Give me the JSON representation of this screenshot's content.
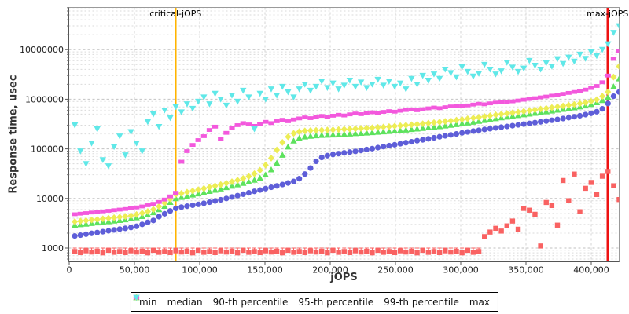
{
  "chart_data": {
    "type": "scatter",
    "title": "",
    "xlabel": "jOPS",
    "ylabel": "Response time, usec",
    "x_scale": "linear",
    "y_scale": "log",
    "xlim": [
      0,
      421500
    ],
    "ylim": [
      540,
      71000000
    ],
    "grid": "dashed",
    "legend_position": "bottom",
    "x_ticks": [
      0,
      50000,
      100000,
      150000,
      200000,
      250000,
      300000,
      350000,
      400000
    ],
    "x_tick_labels": [
      "0",
      "50,000",
      "100,000",
      "150,000",
      "200,000",
      "250,000",
      "300,000",
      "350,000",
      "400,000"
    ],
    "y_ticks": [
      1000,
      10000,
      100000,
      1000000,
      10000000
    ],
    "y_tick_labels": [
      "1000",
      "10000",
      "100000",
      "1000000",
      "10000000"
    ],
    "annotations": [
      {
        "label": "critical-jOPS",
        "x": 81500,
        "color": "#FFB400"
      },
      {
        "label": "max-jOPS",
        "x": 412500,
        "color": "#EE1111"
      }
    ],
    "x": [
      4300,
      8600,
      12900,
      17200,
      21500,
      25800,
      30100,
      34400,
      38700,
      43000,
      47300,
      51600,
      55900,
      60200,
      64500,
      68800,
      73100,
      77400,
      81700,
      86000,
      90300,
      94600,
      98900,
      103200,
      107500,
      111800,
      116100,
      120400,
      124700,
      129000,
      133300,
      137600,
      141900,
      146200,
      150500,
      154800,
      159100,
      163400,
      167700,
      172000,
      176300,
      180600,
      184900,
      189200,
      193500,
      197800,
      202100,
      206400,
      210700,
      215000,
      219300,
      223600,
      227900,
      232200,
      236500,
      240800,
      245100,
      249400,
      253700,
      258000,
      262300,
      266600,
      270900,
      275200,
      279500,
      283800,
      288100,
      292400,
      296700,
      301000,
      305300,
      309600,
      313900,
      318200,
      322500,
      326800,
      331100,
      335400,
      339700,
      344000,
      348300,
      352600,
      356900,
      361200,
      365500,
      369800,
      374100,
      378400,
      382700,
      387000,
      391300,
      395600,
      399900,
      404200,
      408500,
      412800,
      417100,
      421400
    ],
    "series": [
      {
        "name": "min",
        "marker": "square",
        "color": "#F96262",
        "values": [
          850,
          810,
          880,
          830,
          860,
          800,
          900,
          820,
          850,
          810,
          880,
          830,
          860,
          800,
          900,
          820,
          850,
          810,
          880,
          830,
          860,
          800,
          900,
          820,
          850,
          810,
          880,
          830,
          860,
          800,
          900,
          820,
          850,
          810,
          880,
          830,
          860,
          800,
          900,
          820,
          850,
          810,
          880,
          830,
          860,
          800,
          900,
          820,
          850,
          810,
          880,
          830,
          860,
          800,
          900,
          820,
          850,
          810,
          880,
          830,
          860,
          800,
          900,
          820,
          850,
          810,
          880,
          830,
          860,
          800,
          900,
          820,
          850,
          1700,
          2100,
          2500,
          2200,
          2800,
          3500,
          2400,
          6300,
          5800,
          4800,
          1100,
          8300,
          7200,
          2900,
          23000,
          9000,
          31000,
          5400,
          16000,
          21000,
          12000,
          28000,
          35000,
          18000,
          9500
        ]
      },
      {
        "name": "median",
        "marker": "circle",
        "color": "#5E5ED8",
        "values": [
          1750,
          1820,
          1900,
          1980,
          2060,
          2140,
          2230,
          2320,
          2410,
          2500,
          2600,
          2750,
          3000,
          3300,
          3600,
          4300,
          4900,
          5600,
          6300,
          6700,
          7000,
          7300,
          7600,
          8000,
          8400,
          8900,
          9400,
          10000,
          10700,
          11400,
          12200,
          13000,
          13900,
          14800,
          15800,
          16800,
          17900,
          19100,
          20500,
          22000,
          25000,
          31000,
          41000,
          56000,
          67000,
          73000,
          77000,
          80000,
          83000,
          86000,
          89000,
          93000,
          97000,
          101000,
          106000,
          111000,
          116000,
          121000,
          127000,
          133000,
          139000,
          146000,
          152000,
          159000,
          167000,
          175000,
          183000,
          191000,
          200000,
          210000,
          219000,
          228000,
          237000,
          246000,
          255000,
          264000,
          273000,
          283000,
          293000,
          304000,
          315000,
          326000,
          338000,
          350000,
          363000,
          377000,
          392000,
          408000,
          425000,
          444000,
          465000,
          490000,
          520000,
          560000,
          640000,
          820000,
          1150000,
          1400000
        ]
      },
      {
        "name": "90-th percentile",
        "marker": "triangle-up",
        "color": "#5DE25D",
        "values": [
          2900,
          2980,
          3060,
          3150,
          3240,
          3330,
          3430,
          3530,
          3640,
          3750,
          3900,
          4100,
          4350,
          4700,
          5200,
          6000,
          7000,
          8400,
          10000,
          10600,
          11200,
          11800,
          12500,
          13200,
          14000,
          14800,
          15700,
          16700,
          17800,
          19000,
          20300,
          21700,
          23500,
          26000,
          30000,
          38000,
          52000,
          75000,
          110000,
          145000,
          165000,
          175000,
          181000,
          185000,
          188000,
          190000,
          192000,
          195000,
          198000,
          201000,
          204000,
          207000,
          210000,
          214000,
          218000,
          222000,
          226000,
          231000,
          236000,
          241000,
          247000,
          253000,
          260000,
          267000,
          275000,
          283000,
          292000,
          301000,
          311000,
          322000,
          334000,
          347000,
          361000,
          376000,
          392000,
          409000,
          425000,
          440000,
          456000,
          472000,
          489000,
          506000,
          524000,
          543000,
          563000,
          584000,
          606000,
          629000,
          653000,
          678000,
          705000,
          740000,
          790000,
          860000,
          950000,
          1100000,
          1800000,
          2600000
        ]
      },
      {
        "name": "95-th percentile",
        "marker": "diamond",
        "color": "#EDED55",
        "values": [
          3400,
          3490,
          3580,
          3680,
          3780,
          3880,
          3990,
          4100,
          4220,
          4340,
          4500,
          4750,
          5050,
          5450,
          6000,
          6900,
          8100,
          9800,
          12000,
          12700,
          13400,
          14200,
          15000,
          15900,
          16900,
          17900,
          19000,
          20300,
          21700,
          23300,
          25200,
          27800,
          31500,
          37000,
          47000,
          65000,
          95000,
          135000,
          175000,
          205000,
          222000,
          230000,
          234000,
          236000,
          238000,
          240000,
          242000,
          245000,
          248000,
          251000,
          254000,
          258000,
          262000,
          266000,
          271000,
          276000,
          281000,
          287000,
          293000,
          299000,
          306000,
          313000,
          321000,
          329000,
          338000,
          347000,
          357000,
          368000,
          379000,
          391000,
          404000,
          418000,
          433000,
          449000,
          466000,
          484000,
          500000,
          516000,
          533000,
          551000,
          570000,
          590000,
          611000,
          633000,
          656000,
          680000,
          705000,
          731000,
          758000,
          787000,
          820000,
          860000,
          910000,
          980000,
          1150000,
          1400000,
          2800000,
          4600000
        ]
      },
      {
        "name": "99-th percentile",
        "marker": "hbar",
        "color": "#F358DD",
        "values": [
          4800,
          4930,
          5060,
          5200,
          5340,
          5490,
          5640,
          5800,
          5960,
          6130,
          6350,
          6600,
          6900,
          7300,
          7800,
          8500,
          9500,
          11000,
          13000,
          55000,
          90000,
          120000,
          150000,
          180000,
          240000,
          280000,
          160000,
          210000,
          260000,
          300000,
          330000,
          310000,
          290000,
          320000,
          350000,
          330000,
          360000,
          385000,
          360000,
          390000,
          410000,
          430000,
          415000,
          440000,
          460000,
          440000,
          465000,
          485000,
          470000,
          495000,
          515000,
          500000,
          525000,
          545000,
          530000,
          555000,
          575000,
          560000,
          585000,
          605000,
          625000,
          600000,
          630000,
          655000,
          680000,
          660000,
          690000,
          715000,
          740000,
          720000,
          750000,
          780000,
          810000,
          790000,
          825000,
          855000,
          890000,
          870000,
          905000,
          940000,
          975000,
          1010000,
          1050000,
          1090000,
          1130000,
          1180000,
          1230000,
          1280000,
          1340000,
          1400000,
          1470000,
          1560000,
          1680000,
          1850000,
          2200000,
          3000000,
          6500000,
          9500000
        ]
      },
      {
        "name": "max",
        "marker": "triangle-down",
        "color": "#60E8E8",
        "values": [
          300000,
          90000,
          50000,
          130000,
          250000,
          60000,
          45000,
          110000,
          180000,
          75000,
          220000,
          130000,
          90000,
          350000,
          500000,
          280000,
          600000,
          420000,
          700000,
          550000,
          800000,
          650000,
          900000,
          1100000,
          800000,
          1300000,
          1000000,
          750000,
          1200000,
          900000,
          1500000,
          1100000,
          250000,
          1300000,
          1000000,
          1600000,
          1200000,
          1800000,
          1400000,
          1100000,
          1600000,
          2000000,
          1500000,
          1800000,
          2300000,
          1700000,
          2100000,
          1600000,
          1900000,
          2400000,
          1800000,
          2200000,
          1700000,
          2000000,
          2500000,
          1900000,
          2300000,
          1800000,
          2100000,
          1600000,
          2600000,
          2000000,
          3000000,
          2400000,
          3200000,
          2600000,
          4000000,
          3400000,
          2800000,
          4500000,
          3600000,
          2900000,
          3300000,
          5000000,
          4000000,
          3200000,
          3700000,
          5500000,
          4400000,
          3600000,
          4200000,
          6000000,
          4800000,
          4000000,
          5400000,
          4600000,
          6500000,
          5200000,
          7000000,
          5800000,
          8000000,
          6600000,
          9000000,
          7500000,
          10000000,
          13000000,
          22000000,
          30000000
        ]
      }
    ]
  }
}
